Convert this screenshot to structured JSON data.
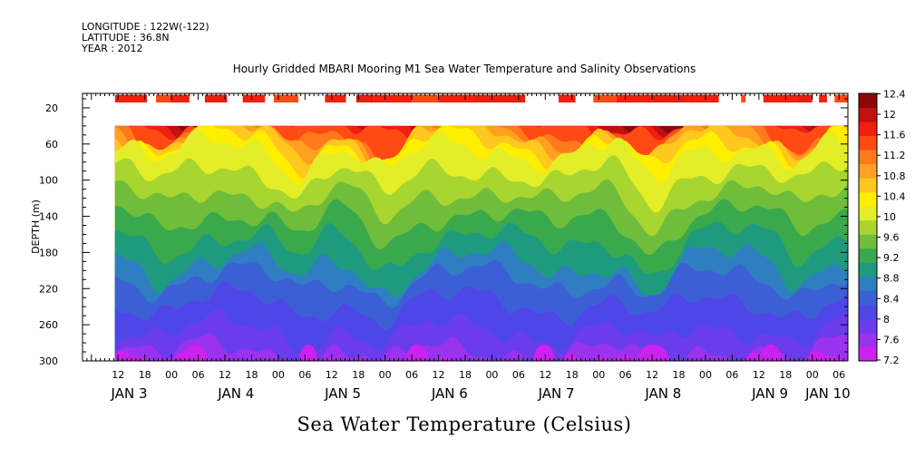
{
  "header": {
    "longitude": "LONGITUDE : 122W(-122)",
    "latitude": "LATITUDE : 36.8N",
    "year": "YEAR : 2012"
  },
  "chart_data": {
    "type": "heatmap",
    "title": "Hourly Gridded MBARI Mooring M1 Sea Water Temperature and Salinity Observations",
    "ylabel": "DEPTH (m)",
    "xlabel_bottom": "Sea Water Temperature (Celsius)",
    "y_ticks": [
      20,
      60,
      100,
      140,
      180,
      220,
      260,
      300
    ],
    "ylim": [
      300,
      4
    ],
    "x_hour_ticks": [
      {
        "h": 12,
        "label": "12"
      },
      {
        "h": 18,
        "label": "18"
      },
      {
        "h": 24,
        "label": "00"
      },
      {
        "h": 30,
        "label": "06"
      },
      {
        "h": 36,
        "label": "12"
      },
      {
        "h": 42,
        "label": "18"
      },
      {
        "h": 48,
        "label": "00"
      },
      {
        "h": 54,
        "label": "06"
      },
      {
        "h": 60,
        "label": "12"
      },
      {
        "h": 66,
        "label": "18"
      },
      {
        "h": 72,
        "label": "00"
      },
      {
        "h": 78,
        "label": "06"
      },
      {
        "h": 84,
        "label": "12"
      },
      {
        "h": 90,
        "label": "18"
      },
      {
        "h": 96,
        "label": "00"
      },
      {
        "h": 102,
        "label": "06"
      },
      {
        "h": 108,
        "label": "12"
      },
      {
        "h": 114,
        "label": "18"
      },
      {
        "h": 120,
        "label": "00"
      },
      {
        "h": 126,
        "label": "06"
      },
      {
        "h": 132,
        "label": "12"
      },
      {
        "h": 138,
        "label": "18"
      },
      {
        "h": 144,
        "label": "00"
      },
      {
        "h": 150,
        "label": "06"
      },
      {
        "h": 156,
        "label": "12"
      },
      {
        "h": 162,
        "label": "18"
      },
      {
        "h": 168,
        "label": "00"
      },
      {
        "h": 174,
        "label": "06"
      }
    ],
    "x_date_labels": [
      {
        "h": 14.5,
        "label": "JAN  3"
      },
      {
        "h": 38.5,
        "label": "JAN  4"
      },
      {
        "h": 62.5,
        "label": "JAN  5"
      },
      {
        "h": 86.5,
        "label": "JAN  6"
      },
      {
        "h": 110.5,
        "label": "JAN  7"
      },
      {
        "h": 134.5,
        "label": "JAN  8"
      },
      {
        "h": 158.5,
        "label": "JAN  9"
      },
      {
        "h": 171.5,
        "label": "JAN 10"
      }
    ],
    "xlim": [
      4,
      176
    ],
    "data_start_hour": 11.3,
    "colorbar": {
      "levels": [
        7.2,
        7.6,
        8,
        8.4,
        8.8,
        9.2,
        9.6,
        10,
        10.4,
        10.8,
        11.2,
        11.6,
        12,
        12.4
      ],
      "colors": [
        "#cc22ee",
        "#9933ee",
        "#6a3cec",
        "#4e46e6",
        "#3c5fd6",
        "#2f7ec2",
        "#1e9b7e",
        "#3aa84c",
        "#6fbd3a",
        "#a8d530",
        "#e4ee28",
        "#ffee00",
        "#ffc81e",
        "#ffa020",
        "#ff7a1c",
        "#ff4a14",
        "#f02010",
        "#c01010",
        "#8c0808"
      ]
    },
    "surface_segments": [
      [
        11.3,
        18.5
      ],
      [
        20.5,
        23.7
      ],
      [
        23.7,
        28.0
      ],
      [
        31.5,
        36.5
      ],
      [
        40.0,
        45.0
      ],
      [
        47.0,
        52.5
      ],
      [
        58.5,
        63.2
      ],
      [
        65.5,
        69.5
      ],
      [
        69.5,
        78.0
      ],
      [
        78.0,
        84.0
      ],
      [
        84.0,
        92.0
      ],
      [
        92.0,
        103.5
      ],
      [
        111.0,
        114.8
      ],
      [
        118.8,
        124.0
      ],
      [
        124.0,
        132.0
      ],
      [
        132.0,
        140.0
      ],
      [
        140.0,
        147.0
      ],
      [
        152.0,
        153.0
      ],
      [
        157.0,
        165.0
      ],
      [
        165.0,
        168.0
      ],
      [
        169.5,
        171.3
      ],
      [
        173.0,
        179.0
      ]
    ]
  }
}
